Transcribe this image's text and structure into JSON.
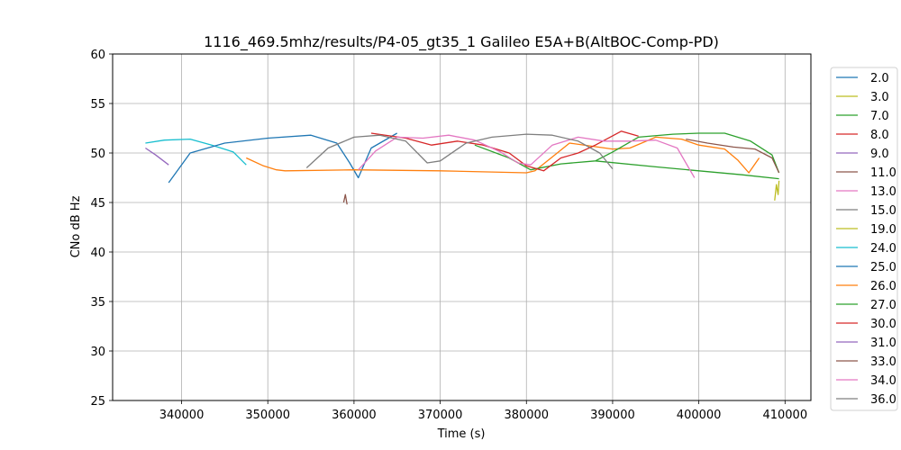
{
  "chart_data": {
    "type": "line",
    "title": "1116_469.5mhz/results/P4-05_gt35_1 Galileo E5A+B(AltBOC-Comp-PD)",
    "xlabel": "Time (s)",
    "ylabel": "CNo dB Hz",
    "xlim": [
      332000,
      413000
    ],
    "ylim": [
      25,
      60
    ],
    "xticks": [
      340000,
      350000,
      360000,
      370000,
      380000,
      390000,
      400000,
      410000
    ],
    "xtick_labels": [
      "340000",
      "350000",
      "360000",
      "370000",
      "380000",
      "390000",
      "400000",
      "410000"
    ],
    "yticks": [
      25,
      30,
      35,
      40,
      45,
      50,
      55,
      60
    ],
    "ytick_labels": [
      "25",
      "30",
      "35",
      "40",
      "45",
      "50",
      "55",
      "60"
    ],
    "grid": true,
    "legend_position": "outside-right",
    "series": [
      {
        "name": "2.0",
        "color": "#1f77b4",
        "points": []
      },
      {
        "name": "3.0",
        "color": "#bcbd22",
        "points": [
          [
            408800,
            45.2
          ],
          [
            409000,
            46.8
          ],
          [
            409200,
            45.8
          ],
          [
            409300,
            47.2
          ]
        ]
      },
      {
        "name": "7.0",
        "color": "#2ca02c",
        "points": [
          [
            388000,
            49.2
          ],
          [
            395000,
            48.6
          ],
          [
            400000,
            48.2
          ],
          [
            405000,
            47.8
          ],
          [
            409300,
            47.4
          ]
        ]
      },
      {
        "name": "8.0",
        "color": "#d62728",
        "points": []
      },
      {
        "name": "9.0",
        "color": "#9467bd",
        "points": []
      },
      {
        "name": "11.0",
        "color": "#8c564b",
        "points": [
          [
            358800,
            45.0
          ],
          [
            359000,
            45.8
          ],
          [
            359200,
            44.8
          ]
        ]
      },
      {
        "name": "13.0",
        "color": "#e377c2",
        "points": []
      },
      {
        "name": "15.0",
        "color": "#7f7f7f",
        "points": []
      },
      {
        "name": "19.0",
        "color": "#bcbd22",
        "points": []
      },
      {
        "name": "24.0",
        "color": "#17becf",
        "points": [
          [
            335800,
            51.0
          ],
          [
            338000,
            51.3
          ],
          [
            341000,
            51.4
          ],
          [
            343500,
            50.8
          ],
          [
            346000,
            50.1
          ],
          [
            347500,
            48.8
          ]
        ]
      },
      {
        "name": "25.0",
        "color": "#1f77b4",
        "points": [
          [
            338500,
            47.0
          ],
          [
            341000,
            50.0
          ],
          [
            345000,
            51.0
          ],
          [
            350000,
            51.5
          ],
          [
            355000,
            51.8
          ],
          [
            358000,
            51.0
          ],
          [
            359500,
            49.0
          ],
          [
            360500,
            47.5
          ],
          [
            362000,
            50.5
          ],
          [
            365000,
            52.0
          ]
        ]
      },
      {
        "name": "26.0",
        "color": "#ff7f0e",
        "points": [
          [
            347500,
            49.5
          ],
          [
            349500,
            48.7
          ],
          [
            351000,
            48.3
          ],
          [
            352000,
            48.2
          ],
          [
            360000,
            48.3
          ],
          [
            370000,
            48.2
          ],
          [
            380000,
            48.0
          ],
          [
            381000,
            48.2
          ],
          [
            383000,
            49.6
          ],
          [
            385000,
            51.0
          ],
          [
            390000,
            50.4
          ],
          [
            392000,
            50.5
          ],
          [
            395000,
            51.6
          ],
          [
            398000,
            51.4
          ],
          [
            400000,
            50.8
          ],
          [
            403000,
            50.4
          ],
          [
            404500,
            49.3
          ],
          [
            405800,
            48.0
          ],
          [
            407000,
            49.5
          ]
        ]
      },
      {
        "name": "27.0",
        "color": "#2ca02c",
        "points": [
          [
            374000,
            50.8
          ],
          [
            378000,
            49.5
          ],
          [
            380500,
            48.3
          ],
          [
            384000,
            48.9
          ],
          [
            388000,
            49.2
          ],
          [
            390000,
            50.1
          ],
          [
            393000,
            51.6
          ],
          [
            397000,
            51.9
          ],
          [
            400000,
            52.0
          ],
          [
            403000,
            52.0
          ],
          [
            406000,
            51.2
          ],
          [
            408500,
            49.8
          ],
          [
            409300,
            48.0
          ]
        ]
      },
      {
        "name": "30.0",
        "color": "#d62728",
        "points": [
          [
            362000,
            52.0
          ],
          [
            366000,
            51.5
          ],
          [
            369000,
            50.8
          ],
          [
            372000,
            51.2
          ],
          [
            375000,
            50.8
          ],
          [
            378000,
            50.0
          ],
          [
            380000,
            48.7
          ],
          [
            382000,
            48.2
          ],
          [
            384000,
            49.5
          ],
          [
            386000,
            50.0
          ],
          [
            388000,
            50.8
          ],
          [
            391000,
            52.2
          ],
          [
            393000,
            51.7
          ]
        ]
      },
      {
        "name": "31.0",
        "color": "#9467bd",
        "points": [
          [
            335800,
            50.5
          ],
          [
            337000,
            49.8
          ],
          [
            338500,
            48.8
          ]
        ]
      },
      {
        "name": "33.0",
        "color": "#8c564b",
        "points": [
          [
            398500,
            51.4
          ],
          [
            401000,
            51.0
          ],
          [
            404000,
            50.6
          ],
          [
            406500,
            50.4
          ],
          [
            408500,
            49.5
          ],
          [
            409300,
            48.0
          ]
        ]
      },
      {
        "name": "34.0",
        "color": "#e377c2",
        "points": [
          [
            360500,
            48.3
          ],
          [
            362500,
            50.2
          ],
          [
            365000,
            51.6
          ],
          [
            368000,
            51.5
          ],
          [
            371000,
            51.8
          ],
          [
            374000,
            51.3
          ],
          [
            377000,
            50.1
          ],
          [
            379000,
            49.0
          ],
          [
            380500,
            48.8
          ],
          [
            383000,
            50.8
          ],
          [
            386000,
            51.6
          ],
          [
            389000,
            51.2
          ],
          [
            392000,
            51.2
          ],
          [
            395000,
            51.3
          ],
          [
            397500,
            50.5
          ],
          [
            399500,
            47.5
          ]
        ]
      },
      {
        "name": "36.0",
        "color": "#7f7f7f",
        "points": [
          [
            354500,
            48.5
          ],
          [
            357000,
            50.5
          ],
          [
            360000,
            51.6
          ],
          [
            363000,
            51.8
          ],
          [
            366000,
            51.2
          ],
          [
            368500,
            49.0
          ],
          [
            370000,
            49.2
          ],
          [
            373000,
            51.0
          ],
          [
            376000,
            51.6
          ],
          [
            380000,
            51.9
          ],
          [
            383000,
            51.8
          ],
          [
            386000,
            51.2
          ],
          [
            388500,
            50.0
          ],
          [
            390000,
            48.4
          ]
        ]
      }
    ]
  }
}
